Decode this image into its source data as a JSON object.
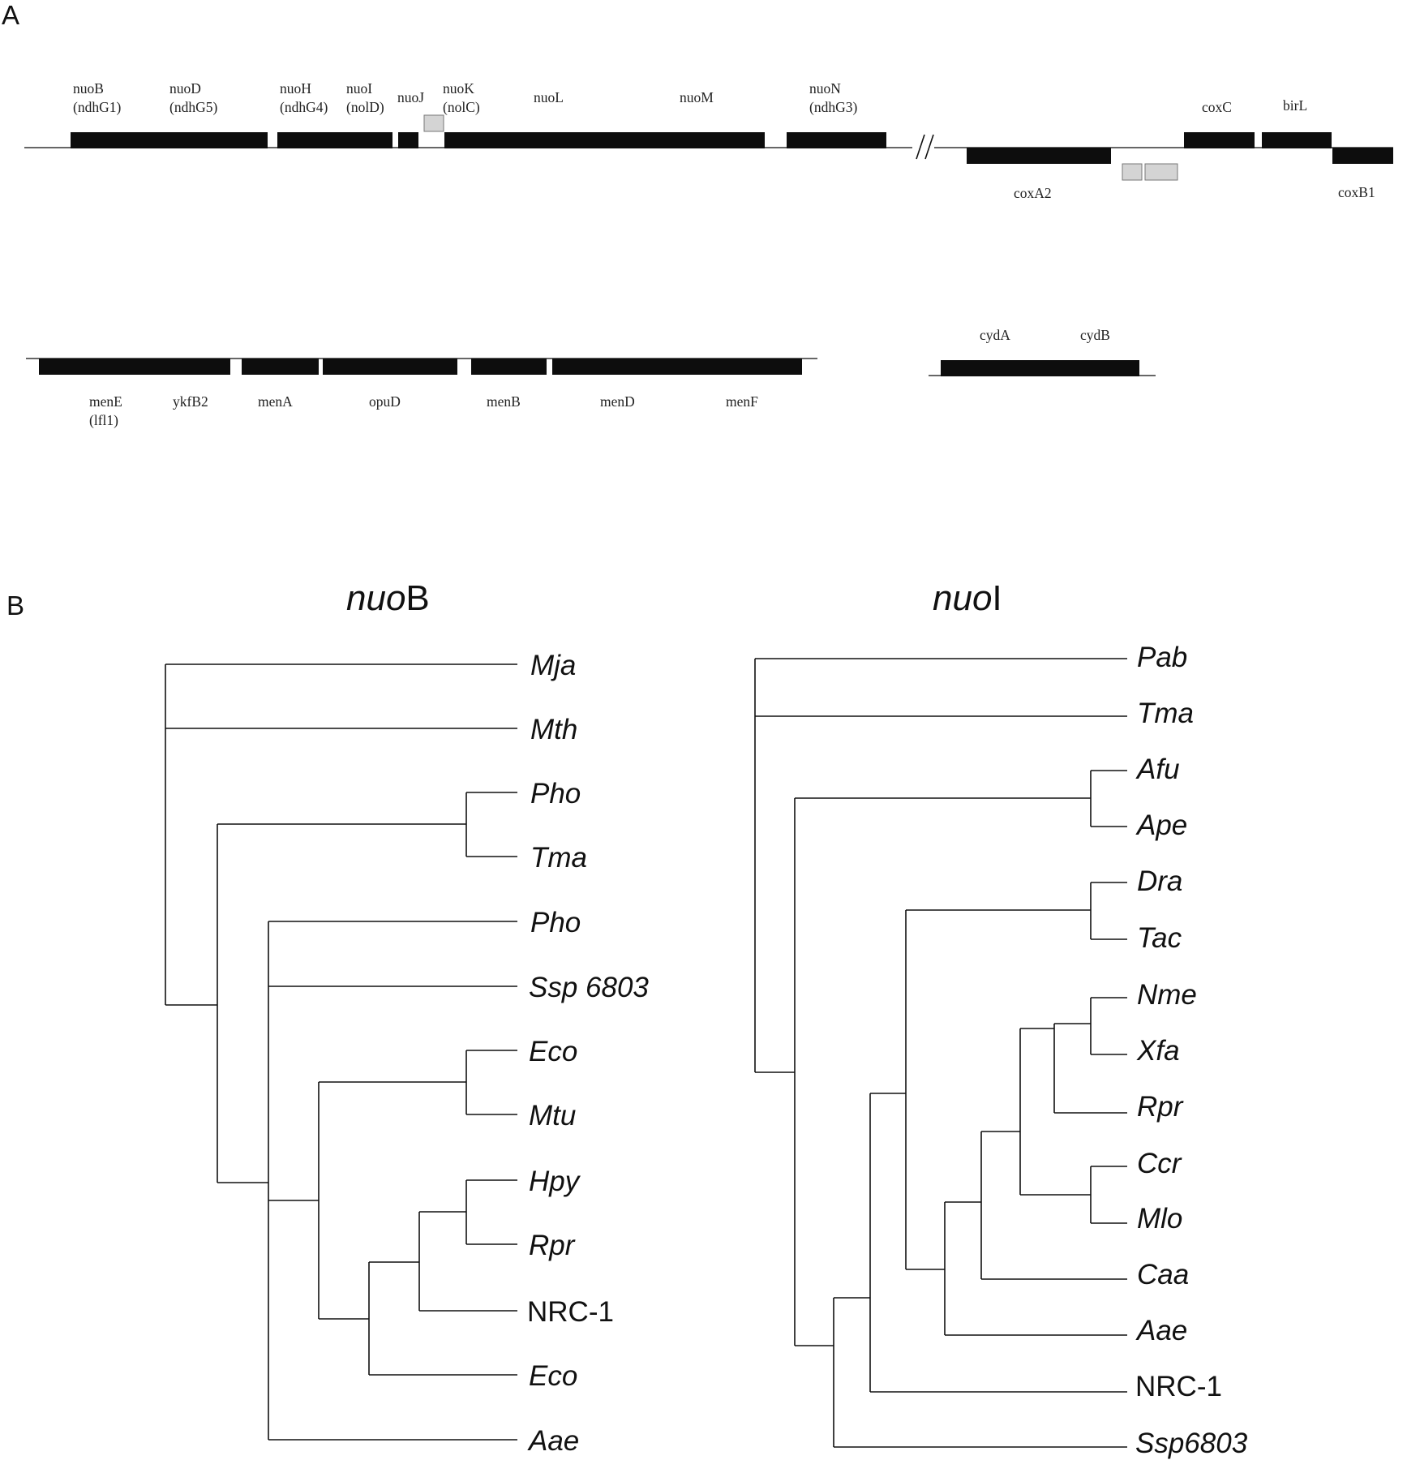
{
  "panel_a": {
    "letter": "A",
    "row1_genes": [
      {
        "name": "nuoB",
        "alias": "(ndhG1)"
      },
      {
        "name": "nuoD",
        "alias": "(ndhG5)"
      },
      {
        "name": "nuoH",
        "alias": "(ndhG4)"
      },
      {
        "name": "nuoI",
        "alias": "(nolD)"
      },
      {
        "name": "nuoJ",
        "alias": ""
      },
      {
        "name": "nuoK",
        "alias": "(nolC)"
      },
      {
        "name": "nuoL",
        "alias": ""
      },
      {
        "name": "nuoM",
        "alias": ""
      },
      {
        "name": "nuoN",
        "alias": "(ndhG3)"
      }
    ],
    "cox_genes": [
      {
        "name": "coxC"
      },
      {
        "name": "birL"
      },
      {
        "name": "coxA2"
      },
      {
        "name": "coxB1"
      }
    ],
    "break_symbol": "//",
    "row2_genes": [
      {
        "name": "menE",
        "alias": "(lfl1)"
      },
      {
        "name": "ykfB2",
        "alias": ""
      },
      {
        "name": "menA",
        "alias": ""
      },
      {
        "name": "opuD",
        "alias": ""
      },
      {
        "name": "menB",
        "alias": ""
      },
      {
        "name": "menD",
        "alias": ""
      },
      {
        "name": "menF",
        "alias": ""
      }
    ],
    "cyd_genes": [
      {
        "name": "cydA"
      },
      {
        "name": "cydB"
      }
    ]
  },
  "panel_b": {
    "letter": "B",
    "trees": [
      {
        "title_italic": "nuo",
        "title_plain": "B",
        "taxa": [
          "Mja",
          "Mth",
          "Pho",
          "Tma",
          "Pho",
          "Ssp 6803",
          "Eco",
          "Mtu",
          "Hpy",
          "Rpr",
          "NRC-1",
          "Eco",
          "Aae"
        ],
        "non_italic": [
          "NRC-1"
        ]
      },
      {
        "title_italic": "nuo",
        "title_plain": "I",
        "taxa": [
          "Pab",
          "Tma",
          "Afu",
          "Ape",
          "Dra",
          "Tac",
          "Nme",
          "Xfa",
          "Rpr",
          "Ccr",
          "Mlo",
          "Caa",
          "Aae",
          "NRC-1",
          "Ssp6803"
        ],
        "non_italic": [
          "NRC-1"
        ]
      }
    ]
  }
}
